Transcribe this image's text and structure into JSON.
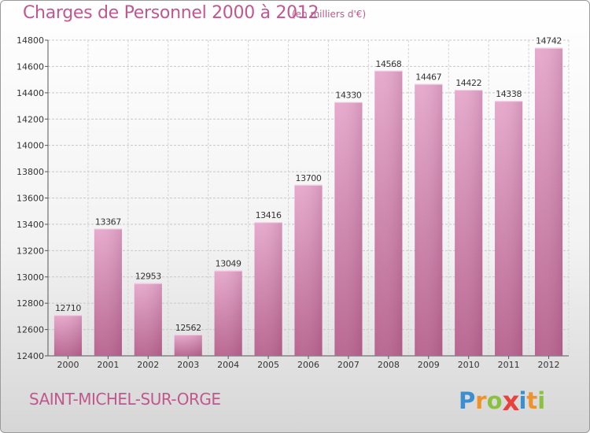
{
  "header": {
    "title": "Charges de Personnel 2000 à 2012",
    "subtitle": "(en milliers d'€)"
  },
  "footer": {
    "city": "SAINT-MICHEL-SUR-ORGE",
    "logo_text": "Proxiti",
    "logo_letters": [
      {
        "char": "P",
        "color": "#3a8fd0"
      },
      {
        "char": "r",
        "color": "#f0922a"
      },
      {
        "char": "o",
        "color": "#8cc13f"
      },
      {
        "char": "x",
        "color": "#e8423f"
      },
      {
        "char": "i",
        "color": "#3a8fd0"
      },
      {
        "char": "t",
        "color": "#f0922a"
      },
      {
        "char": "i",
        "color": "#8cc13f"
      }
    ]
  },
  "chart_data": {
    "type": "bar",
    "title": "Charges de Personnel 2000 à 2012",
    "subtitle": "(en milliers d'€)",
    "categories": [
      "2000",
      "2001",
      "2002",
      "2003",
      "2004",
      "2005",
      "2006",
      "2007",
      "2008",
      "2009",
      "2010",
      "2011",
      "2012"
    ],
    "values": [
      12710,
      13367,
      12953,
      12562,
      13049,
      13416,
      13700,
      14330,
      14568,
      14467,
      14422,
      14338,
      14742
    ],
    "ylim": [
      12400,
      14800
    ],
    "yticks": [
      12400,
      12600,
      12800,
      13000,
      13200,
      13400,
      13600,
      13800,
      14000,
      14200,
      14400,
      14600,
      14800
    ],
    "grid": true,
    "bar_color": "#c35c90",
    "bar_color_light": "#e3a7ca",
    "label_color": "#333333"
  }
}
